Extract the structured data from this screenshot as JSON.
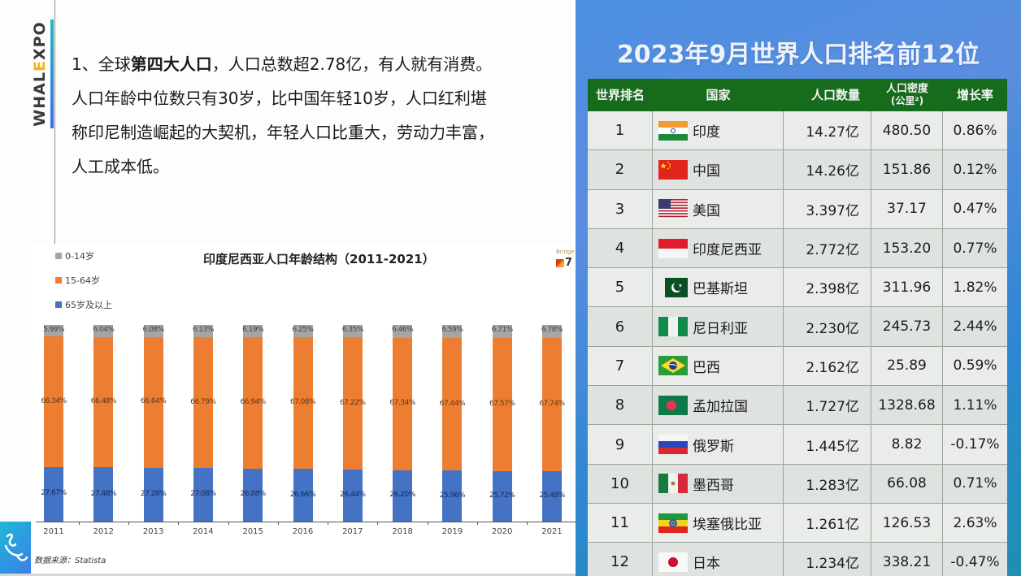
{
  "slide": {
    "brand": {
      "prefix": "WHAL",
      "highlight": "E",
      "suffix": "XPO"
    },
    "intro": {
      "line1_a": "1、全球",
      "line1_bold": "第四大人口",
      "line1_b": "，人口总数超2.78亿，有人就有消费。",
      "line2": "人口年龄中位数只有30岁，比中国年轻10岁，人口红利堪",
      "line3": "称印尼制造崛起的大契机，年轻人口比重大，劳动力丰富，",
      "line4": "人工成本低。"
    }
  },
  "chart_data": {
    "type": "bar",
    "stacked": true,
    "title": "印度尼西亚人口年龄结构（2011-2021）",
    "xlabel": "",
    "ylabel": "",
    "ylim": [
      0,
      100
    ],
    "grid": false,
    "legend_position": "top-left",
    "categories": [
      "2011",
      "2012",
      "2013",
      "2014",
      "2015",
      "2016",
      "2017",
      "2018",
      "2019",
      "2020",
      "2021"
    ],
    "legend": [
      {
        "name": "0-14岁",
        "color": "#a5a5a5"
      },
      {
        "name": "15-64岁",
        "color": "#ed7d31"
      },
      {
        "name": "65岁及以上",
        "color": "#4472c4"
      }
    ],
    "series": [
      {
        "name": "top (gray)",
        "color": "#a5a5a5",
        "values": [
          5.99,
          6.04,
          6.08,
          6.13,
          6.19,
          6.25,
          6.35,
          6.46,
          6.59,
          6.71,
          6.78
        ],
        "labels": [
          "5.99%",
          "6.04%",
          "6.08%",
          "6.13%",
          "6.19%",
          "6.25%",
          "6.35%",
          "6.46%",
          "6.59%",
          "6.71%",
          "6.78%"
        ]
      },
      {
        "name": "middle (orange)",
        "color": "#ed7d31",
        "values": [
          66.34,
          66.48,
          66.64,
          66.79,
          66.94,
          67.08,
          67.22,
          67.34,
          67.44,
          67.57,
          67.74
        ],
        "labels": [
          "66.34%",
          "66.48%",
          "66.64%",
          "66.79%",
          "66.94%",
          "67.08%",
          "67.22%",
          "67.34%",
          "67.44%",
          "67.57%",
          "67.74%"
        ]
      },
      {
        "name": "bottom (blue)",
        "color": "#4472c4",
        "values": [
          27.67,
          27.48,
          27.28,
          27.08,
          26.88,
          26.66,
          26.44,
          26.2,
          25.96,
          25.72,
          25.48
        ],
        "labels": [
          "27.67%",
          "27.48%",
          "27.28%",
          "27.08%",
          "26.88%",
          "26.66%",
          "26.44%",
          "26.20%",
          "25.96%",
          "25.72%",
          "25.48%"
        ]
      }
    ],
    "source": "数据来源：Statista",
    "badge": {
      "text": "Bridge",
      "num": "7"
    }
  },
  "ranking": {
    "title": "2023年9月世界人口排名前12位",
    "header": {
      "rank": "世界排名",
      "country": "国家",
      "population": "人口数量",
      "density": "人口密度",
      "density_unit": "(公里²)",
      "growth": "增长率"
    },
    "colors": {
      "header_bg": "#166b1c",
      "row_bg": "#e9ece9"
    },
    "rows": [
      {
        "rank": "1",
        "flag": "india",
        "country": "印度",
        "population": "14.27亿",
        "density": "480.50",
        "growth": "0.86%"
      },
      {
        "rank": "2",
        "flag": "china",
        "country": "中国",
        "population": "14.26亿",
        "density": "151.86",
        "growth": "0.12%"
      },
      {
        "rank": "3",
        "flag": "usa",
        "country": "美国",
        "population": "3.397亿",
        "density": "37.17",
        "growth": "0.47%"
      },
      {
        "rank": "4",
        "flag": "indonesia",
        "country": "印度尼西亚",
        "population": "2.772亿",
        "density": "153.20",
        "growth": "0.77%"
      },
      {
        "rank": "5",
        "flag": "pakistan",
        "country": "巴基斯坦",
        "population": "2.398亿",
        "density": "311.96",
        "growth": "1.82%"
      },
      {
        "rank": "6",
        "flag": "nigeria",
        "country": "尼日利亚",
        "population": "2.230亿",
        "density": "245.73",
        "growth": "2.44%"
      },
      {
        "rank": "7",
        "flag": "brazil",
        "country": "巴西",
        "population": "2.162亿",
        "density": "25.89",
        "growth": "0.59%"
      },
      {
        "rank": "8",
        "flag": "bangladesh",
        "country": "孟加拉国",
        "population": "1.727亿",
        "density": "1328.68",
        "growth": "1.11%"
      },
      {
        "rank": "9",
        "flag": "russia",
        "country": "俄罗斯",
        "population": "1.445亿",
        "density": "8.82",
        "growth": "-0.17%"
      },
      {
        "rank": "10",
        "flag": "mexico",
        "country": "墨西哥",
        "population": "1.283亿",
        "density": "66.08",
        "growth": "0.71%"
      },
      {
        "rank": "11",
        "flag": "ethiopia",
        "country": "埃塞俄比亚",
        "population": "1.261亿",
        "density": "126.53",
        "growth": "2.63%"
      },
      {
        "rank": "12",
        "flag": "japan",
        "country": "日本",
        "population": "1.234亿",
        "density": "338.21",
        "growth": "-0.47%"
      }
    ]
  }
}
